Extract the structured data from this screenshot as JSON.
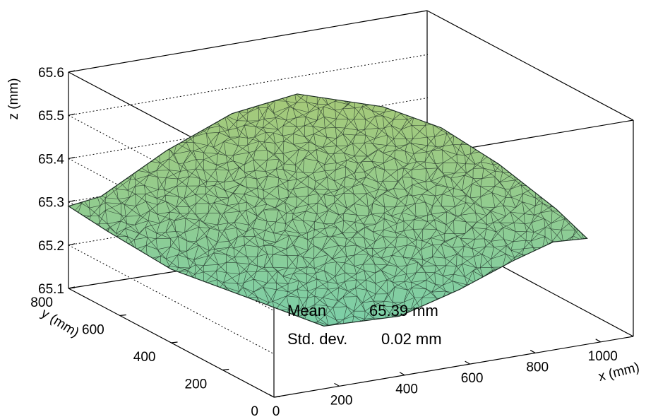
{
  "chart_data": {
    "type": "surface",
    "xlabel": "x (mm)",
    "ylabel": "y (mm)",
    "zlabel": "z (mm)",
    "xlim": [
      0,
      1100
    ],
    "ylim": [
      0,
      800
    ],
    "zlim": [
      65.1,
      65.6
    ],
    "x_ticks": [
      0,
      200,
      400,
      600,
      800,
      1000
    ],
    "y_ticks": [
      0,
      200,
      400,
      600,
      800
    ],
    "z_ticks": [
      65.1,
      65.2,
      65.3,
      65.4,
      65.5,
      65.6
    ],
    "z_grid": "dotted",
    "surface_color": "#7ccfa8",
    "surface_color_high": "#a6c978",
    "stats": [
      {
        "label": "Mean",
        "value": "65.39 mm"
      },
      {
        "label": "Std. dev.",
        "value": "0.02 mm"
      }
    ],
    "surface_outline": [
      {
        "x": 0,
        "y": 800,
        "z": 65.29
      },
      {
        "x": 100,
        "y": 800,
        "z": 65.3
      },
      {
        "x": 300,
        "y": 800,
        "z": 65.38
      },
      {
        "x": 500,
        "y": 800,
        "z": 65.44
      },
      {
        "x": 700,
        "y": 800,
        "z": 65.46
      },
      {
        "x": 900,
        "y": 720,
        "z": 65.43
      },
      {
        "x": 1000,
        "y": 620,
        "z": 65.4
      },
      {
        "x": 1050,
        "y": 460,
        "z": 65.36
      },
      {
        "x": 1100,
        "y": 300,
        "z": 65.3
      },
      {
        "x": 1100,
        "y": 180,
        "z": 65.27
      },
      {
        "x": 950,
        "y": 120,
        "z": 65.3
      },
      {
        "x": 800,
        "y": 80,
        "z": 65.29
      },
      {
        "x": 600,
        "y": 40,
        "z": 65.26
      },
      {
        "x": 400,
        "y": 20,
        "z": 65.23
      },
      {
        "x": 200,
        "y": 60,
        "z": 65.22
      },
      {
        "x": 100,
        "y": 180,
        "z": 65.25
      },
      {
        "x": 0,
        "y": 400,
        "z": 65.27
      },
      {
        "x": 0,
        "y": 650,
        "z": 65.28
      }
    ]
  }
}
